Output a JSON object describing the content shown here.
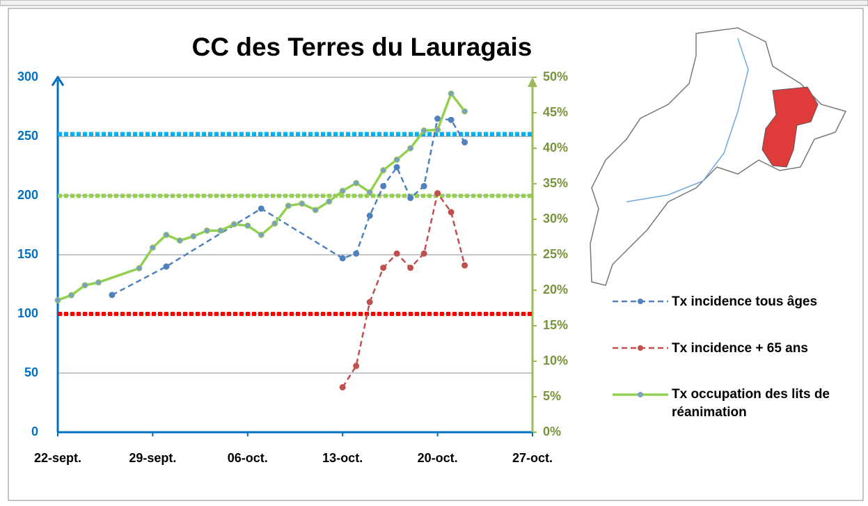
{
  "chart_data": {
    "type": "line",
    "title": "CC des Terres du Lauragais",
    "xlim": [
      0,
      35
    ],
    "xticks": [
      {
        "value": 0,
        "label": "22-sept."
      },
      {
        "value": 7,
        "label": "29-sept."
      },
      {
        "value": 14,
        "label": "06-oct."
      },
      {
        "value": 21,
        "label": "13-oct."
      },
      {
        "value": 28,
        "label": "20-oct."
      },
      {
        "value": 35,
        "label": "27-oct."
      }
    ],
    "ylim": [
      0,
      300
    ],
    "yticks": [
      0,
      50,
      100,
      150,
      200,
      250,
      300
    ],
    "y2lim": [
      0,
      50
    ],
    "y2ticks": [
      {
        "value": 0,
        "label": "0%"
      },
      {
        "value": 5,
        "label": "5%"
      },
      {
        "value": 10,
        "label": "10%"
      },
      {
        "value": 15,
        "label": "15%"
      },
      {
        "value": 20,
        "label": "20%"
      },
      {
        "value": 25,
        "label": "25%"
      },
      {
        "value": 30,
        "label": "30%"
      },
      {
        "value": 35,
        "label": "35%"
      },
      {
        "value": 40,
        "label": "40%"
      },
      {
        "value": 45,
        "label": "45%"
      },
      {
        "value": 50,
        "label": "50%"
      }
    ],
    "grid": true,
    "legend": "right",
    "series": [
      {
        "name": "Tx incidence tous âges",
        "color": "#4f81bd",
        "dash": true,
        "x": [
          4,
          8,
          15,
          21,
          22,
          23,
          24,
          25,
          26,
          27,
          28,
          29,
          30
        ],
        "values": [
          116,
          140,
          189,
          147,
          151,
          183,
          208,
          224,
          198,
          208,
          265,
          264,
          245
        ]
      },
      {
        "name": "Tx incidence + 65 ans",
        "color": "#c0504d",
        "dash": true,
        "x": [
          21,
          22,
          23,
          24,
          25,
          26,
          27,
          28,
          29,
          30
        ],
        "values": [
          38,
          56,
          110,
          139,
          151,
          139,
          151,
          202,
          186,
          141
        ]
      },
      {
        "name": "Tx occupation des lits de réanimation",
        "color": "#92d050",
        "axis": "y2",
        "x": [
          0,
          1,
          2,
          3,
          6,
          7,
          8,
          9,
          10,
          11,
          12,
          13,
          14,
          15,
          16,
          17,
          18,
          19,
          20,
          21,
          22,
          23,
          24,
          25,
          26,
          27,
          28,
          29,
          30
        ],
        "values": [
          18.6,
          19.3,
          20.7,
          21.1,
          23.1,
          26,
          27.8,
          27,
          27.6,
          28.4,
          28.4,
          29.3,
          29.1,
          27.8,
          29.4,
          31.9,
          32.2,
          31.3,
          32.5,
          34,
          35.1,
          33.8,
          36.9,
          38.4,
          40,
          42.5,
          42.6,
          47.7,
          45.2
        ]
      }
    ],
    "reference_lines": [
      {
        "value": 252,
        "color": "#00b0f0"
      },
      {
        "value": 33.3,
        "color": "#92d050",
        "axis": "y2"
      },
      {
        "value": 100,
        "color": "#ff0000"
      }
    ]
  }
}
